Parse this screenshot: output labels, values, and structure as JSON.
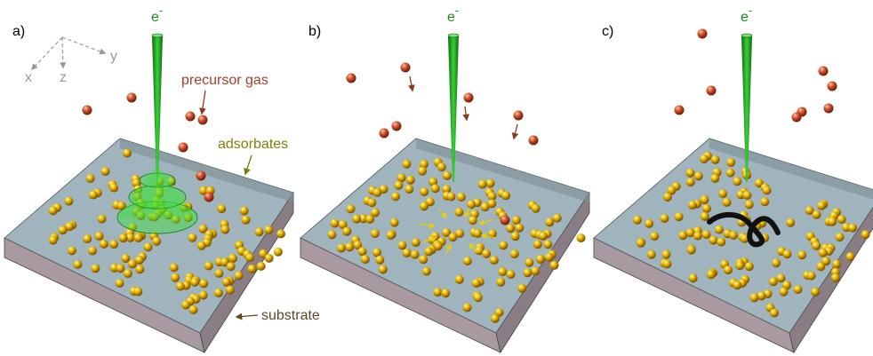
{
  "panels": [
    {
      "label": "a)",
      "beam_label": {
        "base": "e",
        "sup": "-"
      }
    },
    {
      "label": "b)",
      "beam_label": {
        "base": "e",
        "sup": "-"
      }
    },
    {
      "label": "c)",
      "beam_label": {
        "base": "e",
        "sup": "-"
      }
    }
  ],
  "axes": {
    "x": "x",
    "y": "y",
    "z": "z"
  },
  "annotations": {
    "precursor_gas": "precursor gas",
    "adsorbates": "adsorbates",
    "substrate": "substrate"
  }
}
